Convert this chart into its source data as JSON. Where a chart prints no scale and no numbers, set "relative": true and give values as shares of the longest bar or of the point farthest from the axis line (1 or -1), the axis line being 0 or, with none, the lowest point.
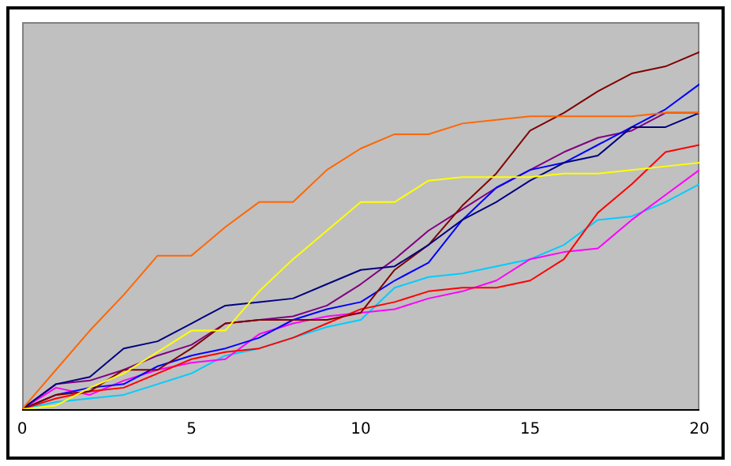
{
  "chart_data": {
    "type": "line",
    "relative": true,
    "x": [
      0,
      1,
      2,
      3,
      4,
      5,
      6,
      7,
      8,
      9,
      10,
      11,
      12,
      13,
      14,
      15,
      16,
      17,
      18,
      19,
      20
    ],
    "xlim": [
      0,
      20
    ],
    "xticks": [
      0,
      5,
      10,
      15,
      20
    ],
    "grid": false,
    "legend": false,
    "marker": "none",
    "line_style": "solid",
    "series": [
      {
        "color": "#ff6600",
        "values": [
          0,
          0.11,
          0.22,
          0.32,
          0.43,
          0.43,
          0.51,
          0.58,
          0.58,
          0.67,
          0.73,
          0.77,
          0.77,
          0.8,
          0.81,
          0.82,
          0.82,
          0.82,
          0.82,
          0.83,
          0.83
        ]
      },
      {
        "color": "#ffff00",
        "values": [
          0,
          0.01,
          0.06,
          0.1,
          0.16,
          0.22,
          0.22,
          0.33,
          0.42,
          0.5,
          0.58,
          0.58,
          0.64,
          0.65,
          0.65,
          0.65,
          0.66,
          0.66,
          0.67,
          0.68,
          0.69
        ]
      },
      {
        "color": "#000080",
        "values": [
          0,
          0.07,
          0.09,
          0.17,
          0.19,
          0.24,
          0.29,
          0.3,
          0.31,
          0.35,
          0.39,
          0.4,
          0.46,
          0.53,
          0.58,
          0.64,
          0.69,
          0.71,
          0.79,
          0.79,
          0.83
        ]
      },
      {
        "color": "#800000",
        "values": [
          0,
          0.04,
          0.05,
          0.11,
          0.11,
          0.17,
          0.24,
          0.25,
          0.25,
          0.25,
          0.27,
          0.39,
          0.46,
          0.57,
          0.66,
          0.78,
          0.83,
          0.89,
          0.94,
          0.96,
          1
        ]
      },
      {
        "color": "#0000ff",
        "values": [
          0,
          0.04,
          0.06,
          0.07,
          0.12,
          0.15,
          0.17,
          0.2,
          0.25,
          0.28,
          0.3,
          0.36,
          0.41,
          0.53,
          0.62,
          0.67,
          0.69,
          0.74,
          0.79,
          0.84,
          0.91
        ]
      },
      {
        "color": "#800080",
        "values": [
          0,
          0.07,
          0.08,
          0.11,
          0.15,
          0.18,
          0.24,
          0.25,
          0.26,
          0.29,
          0.35,
          0.42,
          0.5,
          0.56,
          0.62,
          0.67,
          0.72,
          0.76,
          0.78,
          0.83,
          0.83
        ]
      },
      {
        "color": "#ff0000",
        "values": [
          0,
          0.03,
          0.05,
          0.06,
          0.1,
          0.14,
          0.16,
          0.17,
          0.2,
          0.24,
          0.28,
          0.3,
          0.33,
          0.34,
          0.34,
          0.36,
          0.42,
          0.55,
          0.63,
          0.72,
          0.74
        ]
      },
      {
        "color": "#ff00ff",
        "values": [
          0,
          0.06,
          0.04,
          0.08,
          0.11,
          0.13,
          0.14,
          0.21,
          0.24,
          0.26,
          0.27,
          0.28,
          0.31,
          0.33,
          0.36,
          0.42,
          0.44,
          0.45,
          0.53,
          0.6,
          0.67
        ]
      },
      {
        "color": "#00ccff",
        "values": [
          0,
          0.02,
          0.03,
          0.04,
          0.07,
          0.1,
          0.15,
          0.17,
          0.2,
          0.23,
          0.25,
          0.34,
          0.37,
          0.38,
          0.4,
          0.42,
          0.46,
          0.53,
          0.54,
          0.58,
          0.63
        ]
      }
    ]
  }
}
